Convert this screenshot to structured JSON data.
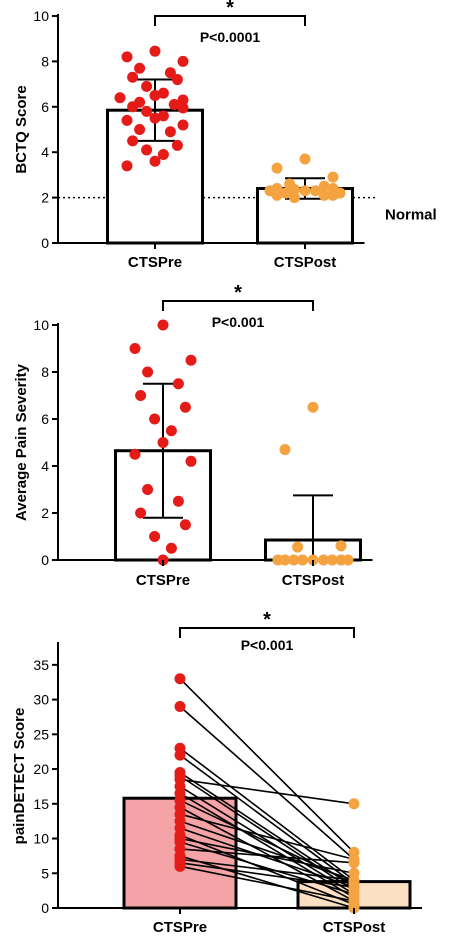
{
  "colors": {
    "pre_dot": "#e51b17",
    "post_dot": "#f5a340",
    "bar_outline": "#000000",
    "bar_fill_plain": "#ffffff",
    "bar_fill_pre_c": "#f4a3a6",
    "bar_fill_post_c": "#fbe0c4"
  },
  "chart_data": [
    {
      "type": "bar",
      "ylabel": "BCTQ Score",
      "categories": [
        "CTSPre",
        "CTSPost"
      ],
      "ylim": [
        0,
        10
      ],
      "yticks": [
        0,
        2,
        4,
        6,
        8,
        10
      ],
      "means": [
        5.85,
        2.4
      ],
      "sd": [
        1.35,
        0.45
      ],
      "points": [
        [
          8.45,
          8.2,
          8.0,
          7.7,
          7.5,
          7.3,
          7.2,
          6.9,
          6.6,
          6.5,
          6.4,
          6.3,
          6.2,
          6.1,
          6.0,
          5.95,
          5.8,
          5.6,
          5.5,
          5.4,
          5.2,
          5.0,
          4.9,
          4.5,
          4.3,
          4.1,
          3.9,
          3.6,
          3.4
        ],
        [
          3.7,
          3.3,
          2.9,
          2.6,
          2.5,
          2.4,
          2.4,
          2.35,
          2.3,
          2.3,
          2.3,
          2.2,
          2.2,
          2.1,
          2.1,
          2.1,
          2.0
        ]
      ],
      "reference_line": {
        "y": 2,
        "label": "Normal"
      },
      "significance": {
        "star": "*",
        "p": "P<0.0001"
      }
    },
    {
      "type": "bar",
      "ylabel": "Average Pain Severity",
      "categories": [
        "CTSPre",
        "CTSPost"
      ],
      "ylim": [
        0,
        10
      ],
      "yticks": [
        0,
        2,
        4,
        6,
        8,
        10
      ],
      "means": [
        4.65,
        0.85
      ],
      "sd": [
        2.85,
        1.9
      ],
      "points": [
        [
          10.0,
          9.0,
          8.5,
          8.0,
          7.5,
          7.0,
          6.5,
          6.0,
          5.5,
          5.0,
          4.5,
          4.2,
          3.0,
          2.5,
          2.0,
          1.5,
          1.0,
          0.5,
          0.0
        ],
        [
          6.5,
          4.7,
          0.6,
          0.55,
          0.0,
          0.0,
          0.0,
          0.0,
          0.0,
          0.0,
          0.0,
          0.0,
          0.0
        ]
      ],
      "significance": {
        "star": "*",
        "p": "P<0.001"
      }
    },
    {
      "type": "bar",
      "ylabel": "painDETECT Score",
      "categories": [
        "CTSPre",
        "CTSPost"
      ],
      "ylim": [
        0,
        38
      ],
      "yticks": [
        0,
        5,
        10,
        15,
        20,
        25,
        30,
        35
      ],
      "means": [
        15.8,
        3.8
      ],
      "points": [
        [
          33,
          29,
          23,
          22,
          19.5,
          19,
          18.5,
          17.5,
          16.5,
          15.5,
          14.5,
          13.5,
          12.5,
          11.5,
          10.5,
          10,
          9.5,
          8.5,
          7.5,
          7,
          6.5,
          6
        ],
        [
          15,
          8,
          7,
          6.5,
          5,
          4,
          3.5,
          3,
          2.5,
          2,
          1.5,
          1,
          0.5,
          0
        ]
      ],
      "pairs": [
        [
          33,
          8
        ],
        [
          29,
          7
        ],
        [
          23,
          4
        ],
        [
          22,
          3.5
        ],
        [
          19.5,
          3
        ],
        [
          19,
          2.5
        ],
        [
          18.5,
          15
        ],
        [
          17.5,
          2
        ],
        [
          16.5,
          1.5
        ],
        [
          15.5,
          3.5
        ],
        [
          14.5,
          1
        ],
        [
          13.5,
          7
        ],
        [
          12.5,
          4
        ],
        [
          11.5,
          3
        ],
        [
          10.5,
          0.5
        ],
        [
          10,
          5
        ],
        [
          9.5,
          2
        ],
        [
          8.5,
          6.5
        ],
        [
          7.5,
          0
        ],
        [
          7,
          4
        ],
        [
          6.5,
          3
        ],
        [
          6,
          1
        ]
      ],
      "significance": {
        "star": "*",
        "p": "P<0.001"
      }
    }
  ]
}
